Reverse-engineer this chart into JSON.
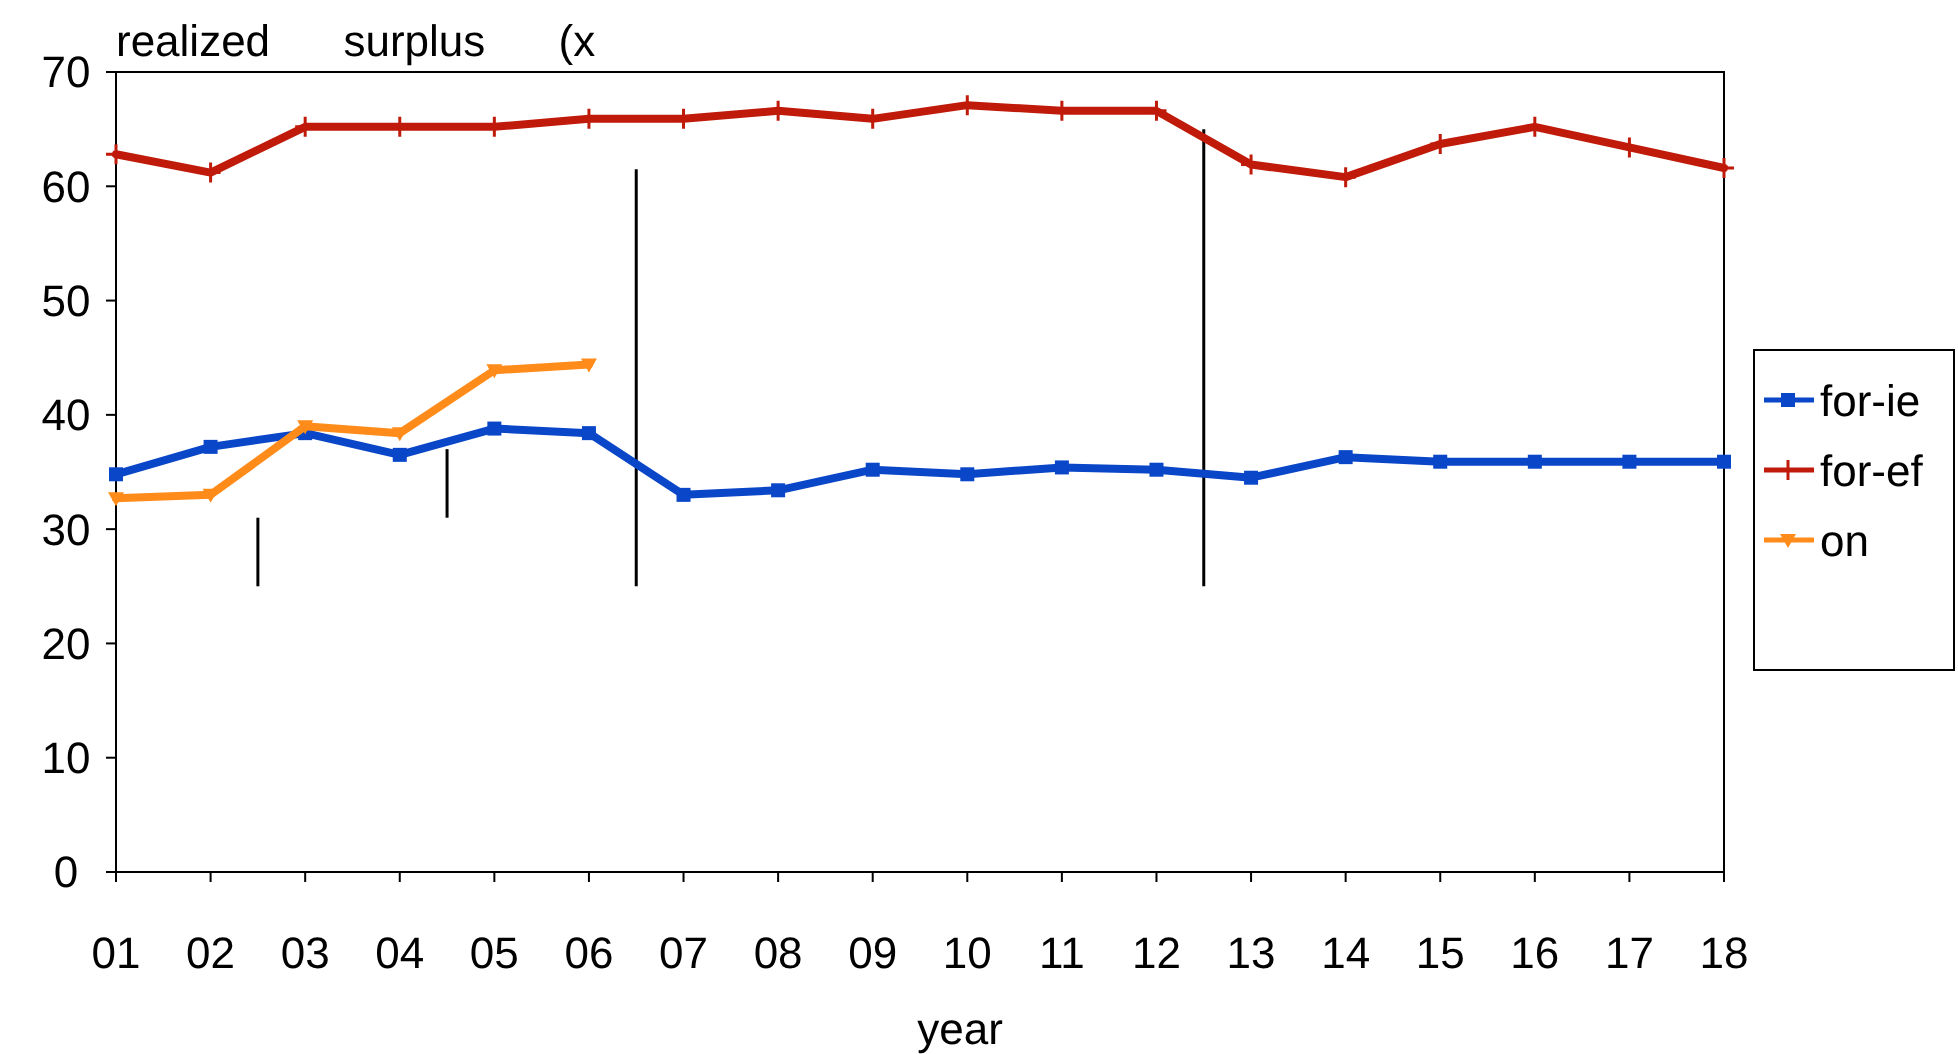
{
  "chart_data": {
    "type": "line",
    "title": "realized      surplus      (x",
    "xlabel": "year",
    "categories": [
      "01",
      "02",
      "03",
      "04",
      "05",
      "06",
      "07",
      "08",
      "09",
      "10",
      "11",
      "12",
      "13",
      "14",
      "15",
      "16",
      "17",
      "18"
    ],
    "series": [
      {
        "name": "for-ie",
        "color": "#0a46c8",
        "marker": "square",
        "values": [
          34.8,
          37.2,
          38.4,
          36.5,
          38.8,
          38.4,
          33.0,
          33.4,
          35.2,
          34.8,
          35.4,
          35.2,
          34.5,
          36.3,
          35.9,
          35.9,
          35.9,
          35.9
        ]
      },
      {
        "name": "for-ef",
        "color": "#c01a0a",
        "marker": "cross",
        "values": [
          62.8,
          61.2,
          65.2,
          65.2,
          65.2,
          65.9,
          65.9,
          66.6,
          65.9,
          67.1,
          66.6,
          66.6,
          61.9,
          60.8,
          63.7,
          65.2,
          63.4,
          61.6
        ]
      },
      {
        "name": "on",
        "color": "#ff8c1a",
        "marker": "triangle",
        "values": [
          32.7,
          33.0,
          39.0,
          38.4,
          43.9,
          44.4,
          null,
          null,
          null,
          null,
          null,
          null,
          null,
          null,
          null,
          null,
          null,
          null
        ]
      }
    ],
    "ylim": [
      0,
      70
    ],
    "yticks": [
      0,
      10,
      20,
      30,
      40,
      50,
      60,
      70
    ],
    "grid": false,
    "legend": "right",
    "line_style": "solid"
  }
}
